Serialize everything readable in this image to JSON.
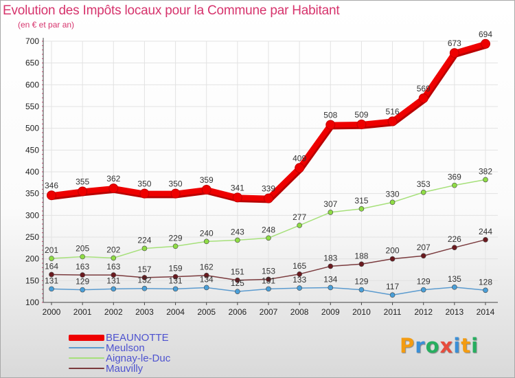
{
  "chart_data": {
    "type": "line",
    "title": "Evolution des Impôts locaux pour la Commune par Habitant",
    "subtitle": "(en € et par an)",
    "xlabel": "",
    "ylabel": "",
    "x": [
      "2000",
      "2001",
      "2002",
      "2003",
      "2004",
      "2005",
      "2006",
      "2007",
      "2008",
      "2009",
      "2010",
      "2011",
      "2012",
      "2013",
      "2014"
    ],
    "ylim": [
      100,
      700
    ],
    "yticks": [
      "100",
      "150",
      "200",
      "250",
      "300",
      "350",
      "400",
      "450",
      "500",
      "550",
      "600",
      "650",
      "700"
    ],
    "series": [
      {
        "name": "Mauvilly",
        "color": "#6b1a1f",
        "line": "#7a3a3d",
        "width": 1.5,
        "values": [
          164,
          163,
          163,
          157,
          159,
          162,
          151,
          153,
          165,
          183,
          188,
          200,
          207,
          226,
          244
        ]
      },
      {
        "name": "Aignay-le-Duc",
        "color": "#8fdc45",
        "line": "#a6e07a",
        "width": 1.5,
        "values": [
          201,
          205,
          202,
          224,
          229,
          240,
          243,
          248,
          277,
          307,
          315,
          330,
          353,
          369,
          382
        ]
      },
      {
        "name": "Meulson",
        "color": "#4a9fd8",
        "line": "#5b9bcf",
        "width": 1.5,
        "values": [
          131,
          129,
          131,
          132,
          131,
          134,
          125,
          131,
          133,
          134,
          129,
          117,
          129,
          135,
          128
        ]
      },
      {
        "name": "BEAUNOTTE",
        "color": "#ee0000",
        "line": "#ee0000",
        "width": 8,
        "values": [
          346,
          355,
          362,
          350,
          350,
          359,
          341,
          339,
          409,
          508,
          509,
          516,
          569,
          673,
          694
        ]
      }
    ],
    "legend": [
      "BEAUNOTTE",
      "Meulson",
      "Aignay-le-Duc",
      "Mauvilly"
    ],
    "legend_position": "bottom-left"
  },
  "branding": {
    "logo_letters": [
      "P",
      "r",
      "o",
      "x",
      "i",
      "t",
      "i"
    ],
    "logo_colors": [
      "#f39c12",
      "#3b8fd6",
      "#27ae60",
      "#e74c3c",
      "#3b8fd6",
      "#f39c12",
      "#27ae60"
    ]
  }
}
